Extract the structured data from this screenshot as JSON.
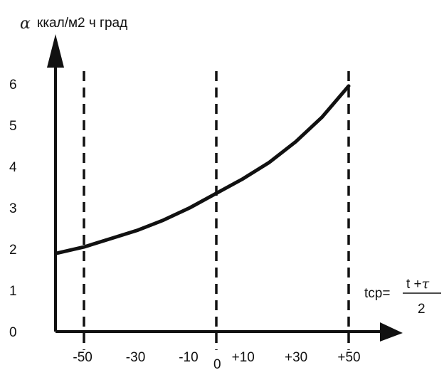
{
  "chart_data": {
    "type": "line",
    "ylabel_symbol": "α",
    "ylabel": "ккал/м2 ч град",
    "xlabel_prefix": "tср=",
    "xlabel_numerator_prefix": "t +",
    "xlabel_numerator_symbol": "τ",
    "xlabel_denominator": "2",
    "xlim": [
      -60,
      60
    ],
    "ylim": [
      0,
      6
    ],
    "y_ticks": [
      "0",
      "1",
      "2",
      "3",
      "4",
      "5",
      "6"
    ],
    "y_tick_values": [
      0,
      1,
      2,
      3,
      4,
      5,
      6
    ],
    "x_ticks": [
      "-50",
      "-30",
      "-10",
      "0",
      "+10",
      "+30",
      "+50"
    ],
    "x_tick_values": [
      -50,
      -30,
      -10,
      0,
      10,
      30,
      50
    ],
    "vertical_dashed_lines_at": [
      -50,
      0,
      50
    ],
    "series": [
      {
        "x": [
          -60,
          -50,
          -40,
          -30,
          -20,
          -10,
          0,
          10,
          20,
          30,
          40,
          50
        ],
        "values": [
          1.9,
          2.05,
          2.25,
          2.45,
          2.7,
          3.0,
          3.35,
          3.7,
          4.1,
          4.6,
          5.2,
          5.95
        ]
      }
    ]
  }
}
